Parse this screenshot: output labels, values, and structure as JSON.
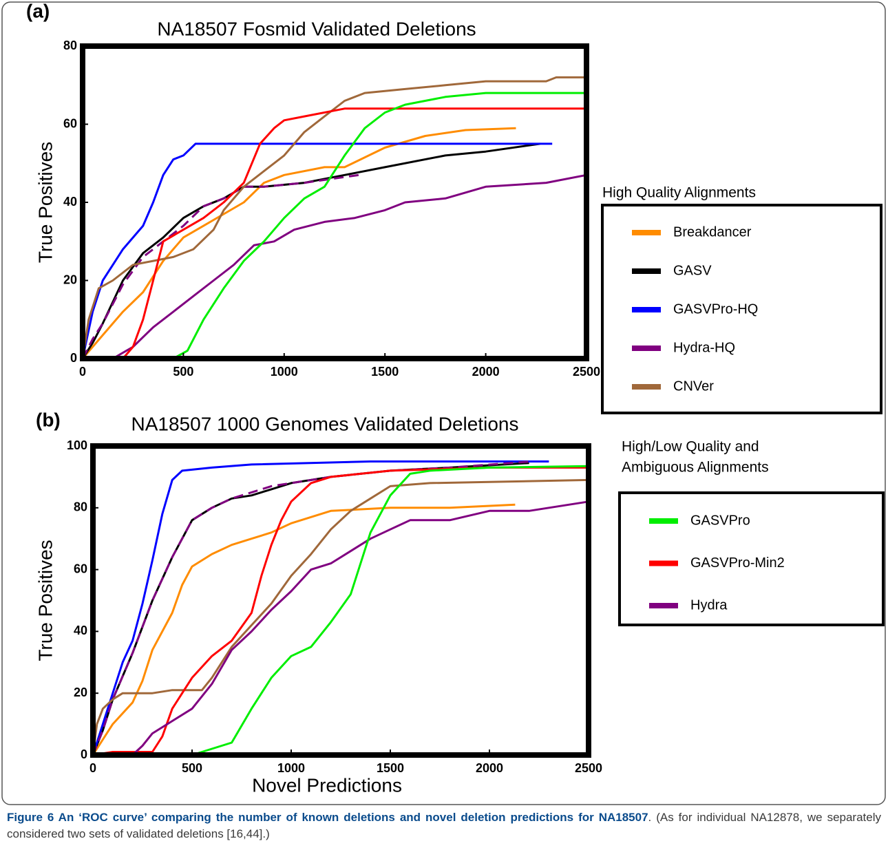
{
  "chart_data": [
    {
      "type": "line",
      "panel": "(a)",
      "title": "NA18507 Fosmid Validated Deletions",
      "ylabel": "True Positives",
      "xlim": [
        0,
        2500
      ],
      "ylim": [
        0,
        80
      ],
      "xticks": [
        0,
        500,
        1000,
        1500,
        2000,
        2500
      ],
      "yticks": [
        0,
        20,
        40,
        60,
        80
      ],
      "series": [
        {
          "color": "#ff8c00",
          "x": [
            0,
            50,
            100,
            200,
            300,
            400,
            500,
            600,
            700,
            800,
            900,
            1000,
            1200,
            1300,
            1500,
            1700,
            1900,
            2150
          ],
          "values": [
            0,
            3,
            6,
            12,
            17,
            25,
            31,
            34,
            37,
            40,
            45,
            47,
            49,
            49,
            54,
            57,
            58.5,
            59
          ]
        },
        {
          "color": "#000000",
          "x": [
            0,
            50,
            100,
            200,
            300,
            400,
            500,
            600,
            700,
            800,
            900,
            1100,
            1300,
            1500,
            1800,
            2000,
            2270
          ],
          "values": [
            0,
            4,
            9,
            20,
            27,
            31,
            36,
            39,
            41,
            44,
            44,
            45,
            47,
            49,
            52,
            53,
            55
          ]
        },
        {
          "color": "#0000ff",
          "x": [
            0,
            50,
            100,
            200,
            300,
            350,
            400,
            450,
            500,
            560,
            2330
          ],
          "values": [
            0,
            12,
            20,
            28,
            34,
            40,
            47,
            51,
            52,
            55,
            55
          ]
        },
        {
          "color": "#800080",
          "x": [
            0,
            150,
            250,
            350,
            450,
            550,
            650,
            750,
            850,
            950,
            1050,
            1200,
            1350,
            1500,
            1600,
            1800,
            2000,
            2300,
            2500
          ],
          "values": [
            0,
            0,
            3,
            8,
            12,
            16,
            20,
            24,
            29,
            30,
            33,
            35,
            36,
            38,
            40,
            41,
            44,
            45,
            47
          ]
        },
        {
          "color": "#800080",
          "dashed": true,
          "x": [
            0,
            50,
            100,
            200,
            300,
            400,
            500,
            600,
            700,
            800,
            900,
            1100,
            1370
          ],
          "values": [
            0,
            5,
            9,
            19,
            26,
            30,
            34,
            39,
            41,
            44,
            44,
            45,
            47
          ]
        },
        {
          "color": "#a0683a",
          "x": [
            0,
            30,
            80,
            150,
            250,
            350,
            450,
            550,
            650,
            700,
            800,
            900,
            1000,
            1100,
            1200,
            1300,
            1400,
            1600,
            1800,
            2000,
            2300,
            2350,
            2500
          ],
          "values": [
            0,
            10,
            18,
            20,
            24,
            25,
            26,
            28,
            33,
            38,
            44,
            48,
            52,
            58,
            62,
            66,
            68,
            69,
            70,
            71,
            71,
            72,
            72
          ]
        },
        {
          "color": "#ff0000",
          "x": [
            0,
            200,
            250,
            300,
            350,
            400,
            500,
            600,
            700,
            800,
            880,
            950,
            1000,
            1100,
            1300,
            2500
          ],
          "values": [
            0,
            0,
            3,
            10,
            20,
            30,
            33,
            36,
            40,
            45,
            55,
            59,
            61,
            62,
            64,
            64
          ]
        },
        {
          "color": "#00ee00",
          "x": [
            0,
            450,
            520,
            600,
            700,
            800,
            900,
            1000,
            1100,
            1200,
            1300,
            1400,
            1500,
            1600,
            1800,
            2000,
            2500
          ],
          "values": [
            0,
            0,
            2,
            10,
            18,
            25,
            30,
            36,
            41,
            44,
            52,
            59,
            63,
            65,
            67,
            68,
            68
          ]
        }
      ]
    },
    {
      "type": "line",
      "panel": "(b)",
      "title": "NA18507 1000 Genomes Validated Deletions",
      "ylabel": "True Positives",
      "xlim": [
        0,
        2500
      ],
      "ylim": [
        0,
        100
      ],
      "xticks": [
        0,
        500,
        1000,
        1500,
        2000,
        2500
      ],
      "yticks": [
        0,
        20,
        40,
        60,
        80,
        100
      ],
      "series": [
        {
          "color": "#ff8c00",
          "x": [
            0,
            50,
            100,
            200,
            250,
            300,
            400,
            450,
            500,
            600,
            700,
            800,
            900,
            1000,
            1200,
            1500,
            1800,
            2130
          ],
          "values": [
            0,
            5,
            10,
            17,
            24,
            34,
            46,
            55,
            61,
            65,
            68,
            70,
            72,
            75,
            79,
            80,
            80,
            81
          ]
        },
        {
          "color": "#000000",
          "x": [
            0,
            50,
            100,
            200,
            300,
            400,
            500,
            600,
            700,
            800,
            900,
            1000,
            1200,
            1500,
            1800,
            2200
          ],
          "values": [
            0,
            8,
            18,
            33,
            50,
            64,
            76,
            80,
            83,
            84,
            86,
            88,
            90,
            92,
            93,
            94.5
          ]
        },
        {
          "color": "#0000ff",
          "x": [
            0,
            50,
            100,
            150,
            200,
            250,
            300,
            350,
            400,
            450,
            600,
            800,
            1400,
            2200,
            2300
          ],
          "values": [
            0,
            10,
            20,
            30,
            37,
            49,
            63,
            78,
            89,
            92,
            93,
            94,
            95,
            95,
            95
          ]
        },
        {
          "color": "#800080",
          "dashed": true,
          "x": [
            0,
            50,
            100,
            200,
            300,
            400,
            500,
            600,
            700,
            800,
            900,
            1000,
            1200,
            1500,
            1800,
            2210
          ],
          "values": [
            0,
            8,
            18,
            33,
            50,
            64,
            76,
            80,
            83,
            85,
            87,
            88,
            90,
            92,
            93,
            95
          ]
        },
        {
          "color": "#a0683a",
          "x": [
            0,
            20,
            50,
            100,
            150,
            300,
            400,
            550,
            600,
            700,
            800,
            900,
            1000,
            1100,
            1200,
            1300,
            1400,
            1500,
            1700,
            2500
          ],
          "values": [
            0,
            10,
            15,
            18,
            20,
            20,
            21,
            21,
            25,
            35,
            42,
            49,
            58,
            65,
            73,
            79,
            83,
            87,
            88,
            89
          ]
        },
        {
          "color": "#ff0000",
          "x": [
            0,
            100,
            300,
            350,
            400,
            500,
            600,
            700,
            800,
            850,
            900,
            950,
            1000,
            1100,
            1200,
            1500,
            2000,
            2500
          ],
          "values": [
            0,
            1,
            1,
            6,
            15,
            25,
            32,
            37,
            46,
            58,
            68,
            76,
            82,
            88,
            90,
            92,
            93,
            93
          ]
        },
        {
          "color": "#800080",
          "x": [
            0,
            200,
            250,
            300,
            400,
            500,
            600,
            700,
            800,
            900,
            1000,
            1100,
            1200,
            1300,
            1400,
            1500,
            1600,
            1800,
            2000,
            2200,
            2500
          ],
          "values": [
            0,
            0,
            3,
            7,
            11,
            15,
            23,
            34,
            40,
            47,
            53,
            60,
            62,
            66,
            70,
            73,
            76,
            76,
            79,
            79,
            82
          ]
        },
        {
          "color": "#00ee00",
          "x": [
            0,
            500,
            600,
            700,
            800,
            900,
            1000,
            1100,
            1200,
            1300,
            1400,
            1500,
            1600,
            1700,
            2000,
            2500
          ],
          "values": [
            0,
            0,
            2,
            4,
            15,
            25,
            32,
            35,
            43,
            52,
            72,
            84,
            91,
            92,
            93,
            93.5
          ]
        }
      ]
    }
  ],
  "xlabel": "Novel Predictions",
  "legends": [
    {
      "title_lines": [
        "High Quality Alignments"
      ],
      "entries": [
        {
          "name": "Breakdancer",
          "color": "#ff8c00"
        },
        {
          "name": "GASV",
          "color": "#000000"
        },
        {
          "name": "GASVPro-HQ",
          "color": "#0000ff"
        },
        {
          "name": "Hydra-HQ",
          "color": "#800080"
        },
        {
          "name": "CNVer",
          "color": "#a0683a"
        }
      ]
    },
    {
      "title_lines": [
        "High/Low Quality and",
        "Ambiguous Alignments"
      ],
      "entries": [
        {
          "name": "GASVPro",
          "color": "#00ee00"
        },
        {
          "name": "GASVPro-Min2",
          "color": "#ff0000"
        },
        {
          "name": "Hydra",
          "color": "#800080"
        }
      ]
    }
  ],
  "caption": {
    "bold": "Figure 6 An ‘ROC curve’ comparing the number of known deletions and novel deletion predictions for NA18507",
    "text": ". (As for individual NA12878, we separately considered two sets of validated deletions [16,44].)"
  }
}
